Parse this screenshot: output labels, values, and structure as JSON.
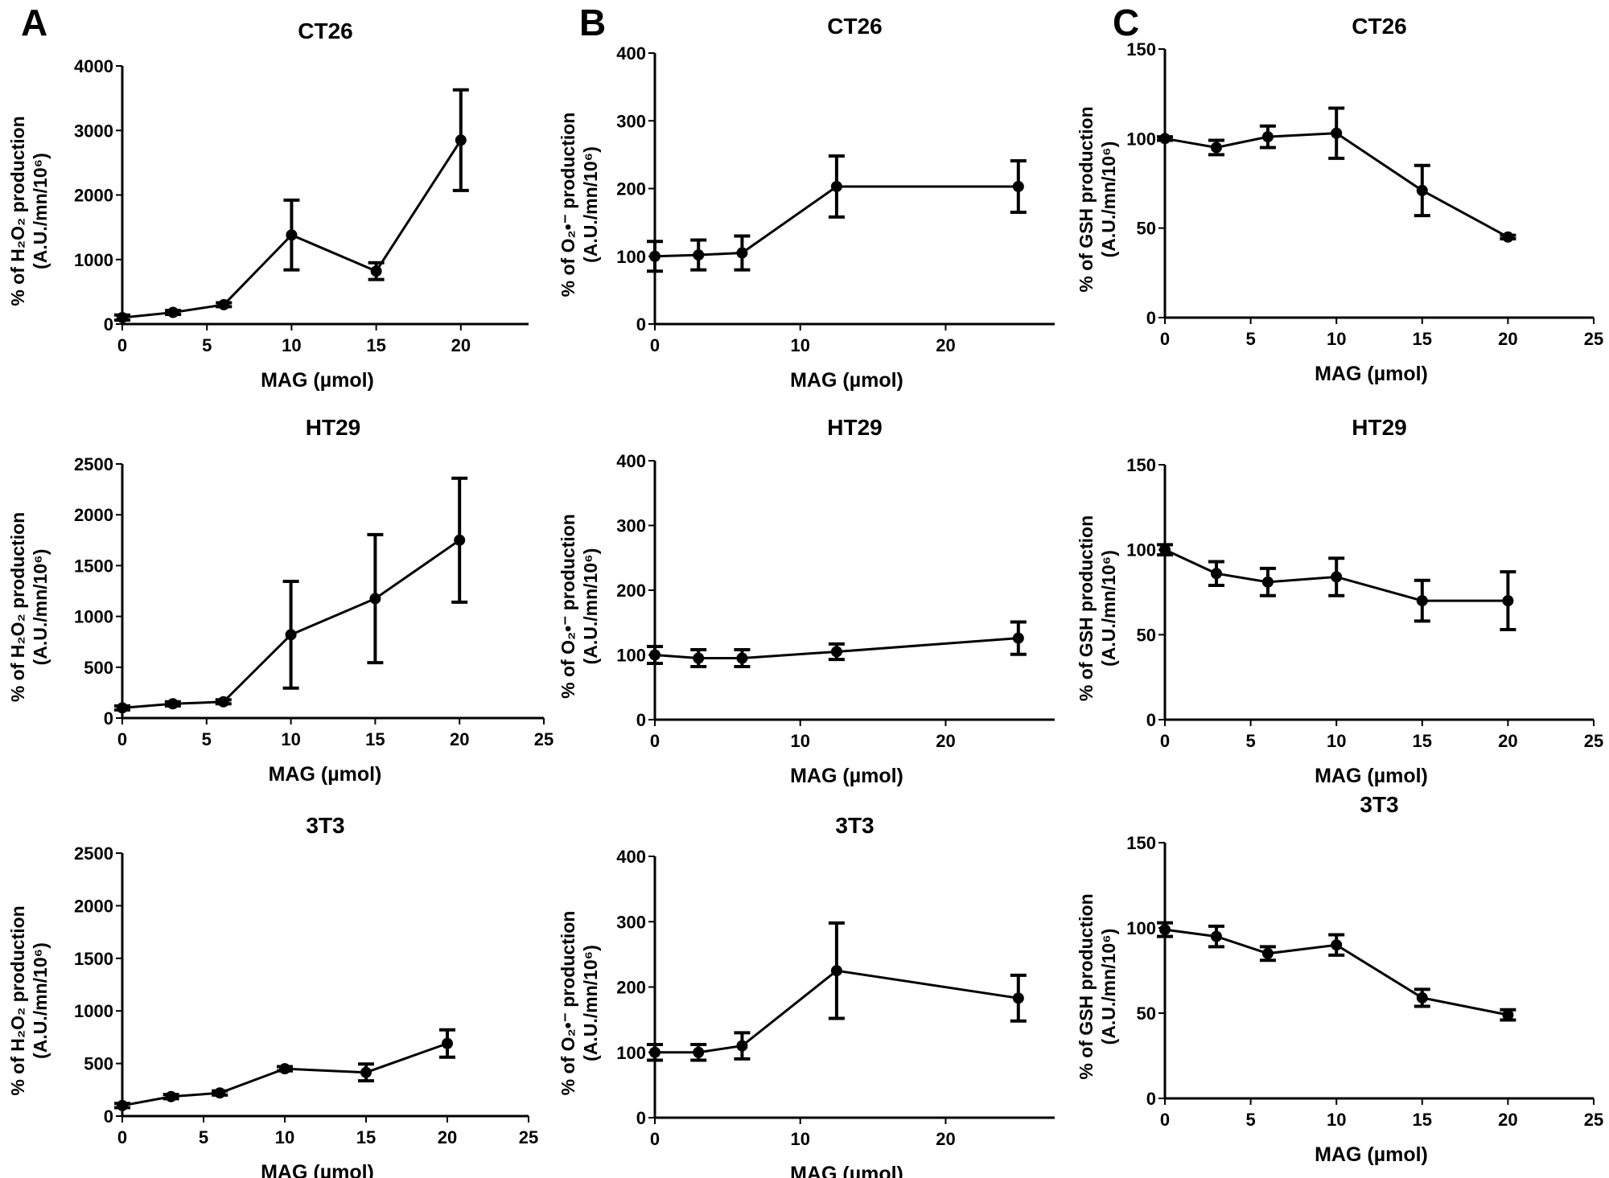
{
  "panel_letters": [
    "A",
    "B",
    "C"
  ],
  "chart_data": [
    {
      "type": "line",
      "panel": "A",
      "title": "CT26",
      "xlabel": "MAG (µmol)",
      "ylabel": [
        "% of H₂O₂ production",
        "(A.U./mn/10⁶)"
      ],
      "xlim": [
        0,
        24
      ],
      "ylim": [
        0,
        4000
      ],
      "xticks": [
        0,
        5,
        10,
        15,
        20
      ],
      "yticks": [
        0,
        1000,
        2000,
        3000,
        4000
      ],
      "x": [
        0,
        3,
        6,
        10,
        15,
        20
      ],
      "y": [
        100,
        180,
        300,
        1380,
        820,
        2850
      ],
      "error": [
        40,
        30,
        30,
        540,
        130,
        780
      ]
    },
    {
      "type": "line",
      "panel": "A",
      "title": "HT29",
      "xlabel": "MAG (µmol)",
      "ylabel": [
        "% of H₂O₂ production",
        "(A.U./mn/10⁶)"
      ],
      "xlim": [
        0,
        25
      ],
      "ylim": [
        0,
        2500
      ],
      "xticks": [
        0,
        5,
        10,
        15,
        20,
        25
      ],
      "yticks": [
        0,
        500,
        1000,
        1500,
        2000,
        2500
      ],
      "x": [
        0,
        3,
        6,
        10,
        15,
        20
      ],
      "y": [
        100,
        140,
        160,
        820,
        1175,
        1750
      ],
      "error": [
        20,
        20,
        20,
        525,
        630,
        610
      ]
    },
    {
      "type": "line",
      "panel": "A",
      "title": "3T3",
      "xlabel": "MAG (µmol)",
      "ylabel": [
        "% of H₂O₂ production",
        "(A.U./mn/10⁶)"
      ],
      "xlim": [
        0,
        25
      ],
      "ylim": [
        0,
        2500
      ],
      "xticks": [
        0,
        5,
        10,
        15,
        20,
        25
      ],
      "yticks": [
        0,
        500,
        1000,
        1500,
        2000,
        2500
      ],
      "x": [
        0,
        3,
        6,
        10,
        15,
        20
      ],
      "y": [
        100,
        185,
        220,
        450,
        415,
        690
      ],
      "error": [
        20,
        20,
        20,
        20,
        80,
        130
      ]
    },
    {
      "type": "line",
      "panel": "B",
      "title": "CT26",
      "xlabel": "MAG (µmol)",
      "ylabel": [
        "% of O₂•⁻ production",
        "(A.U./mn/10⁶)"
      ],
      "xlim": [
        0,
        27.5
      ],
      "ylim": [
        0,
        400
      ],
      "xticks": [
        0,
        10,
        20
      ],
      "yticks": [
        0,
        100,
        200,
        300,
        400
      ],
      "x": [
        0,
        3,
        6,
        12.5,
        25
      ],
      "y": [
        100,
        102,
        105,
        203,
        203
      ],
      "error": [
        22,
        22,
        25,
        45,
        38
      ]
    },
    {
      "type": "line",
      "panel": "B",
      "title": "HT29",
      "xlabel": "MAG (µmol)",
      "ylabel": [
        "% of O₂•⁻ production",
        "(A.U./mn/10⁶)"
      ],
      "xlim": [
        0,
        27.5
      ],
      "ylim": [
        0,
        400
      ],
      "xticks": [
        0,
        10,
        20
      ],
      "yticks": [
        0,
        100,
        200,
        300,
        400
      ],
      "x": [
        0,
        3,
        6,
        12.5,
        25
      ],
      "y": [
        100,
        95,
        95,
        105,
        126
      ],
      "error": [
        13,
        13,
        13,
        12,
        25
      ]
    },
    {
      "type": "line",
      "panel": "B",
      "title": "3T3",
      "xlabel": "MAG (µmol)",
      "ylabel": [
        "% of O₂•⁻ production",
        "(A.U./mn/10⁶)"
      ],
      "xlim": [
        0,
        27.5
      ],
      "ylim": [
        0,
        400
      ],
      "xticks": [
        0,
        10,
        20
      ],
      "yticks": [
        0,
        100,
        200,
        300,
        400
      ],
      "x": [
        0,
        3,
        6,
        12.5,
        25
      ],
      "y": [
        100,
        100,
        110,
        225,
        183
      ],
      "error": [
        12,
        12,
        20,
        73,
        35
      ]
    },
    {
      "type": "line",
      "panel": "C",
      "title": "CT26",
      "xlabel": "MAG (µmol)",
      "ylabel": [
        "% of GSH production",
        "(A.U./mn/10⁶)"
      ],
      "xlim": [
        0,
        25
      ],
      "ylim": [
        0,
        150
      ],
      "xticks": [
        0,
        5,
        10,
        15,
        20,
        25
      ],
      "yticks": [
        0,
        50,
        100,
        150
      ],
      "x": [
        0,
        3,
        6,
        10,
        15,
        20
      ],
      "y": [
        100,
        95,
        101,
        103,
        71,
        45
      ],
      "error": [
        1,
        4,
        6,
        14,
        14,
        1
      ]
    },
    {
      "type": "line",
      "panel": "C",
      "title": "HT29",
      "xlabel": "MAG (µmol)",
      "ylabel": [
        "% of GSH production",
        "(A.U./mn/10⁶)"
      ],
      "xlim": [
        0,
        25
      ],
      "ylim": [
        0,
        150
      ],
      "xticks": [
        0,
        5,
        10,
        15,
        20,
        25
      ],
      "yticks": [
        0,
        50,
        100,
        150
      ],
      "x": [
        0,
        3,
        6,
        10,
        15,
        20
      ],
      "y": [
        100,
        86,
        81,
        84,
        70,
        70
      ],
      "error": [
        3,
        7,
        8,
        11,
        12,
        17
      ]
    },
    {
      "type": "line",
      "panel": "C",
      "title": "3T3",
      "xlabel": "MAG (µmol)",
      "ylabel": [
        "% of GSH production",
        "(A.U./mn/10⁶)"
      ],
      "xlim": [
        0,
        25
      ],
      "ylim": [
        0,
        150
      ],
      "xticks": [
        0,
        5,
        10,
        15,
        20,
        25
      ],
      "yticks": [
        0,
        50,
        100,
        150
      ],
      "x": [
        0,
        3,
        6,
        10,
        15,
        20
      ],
      "y": [
        99,
        95,
        85,
        90,
        59,
        49
      ],
      "error": [
        4,
        6,
        4,
        6,
        5,
        3
      ]
    }
  ]
}
